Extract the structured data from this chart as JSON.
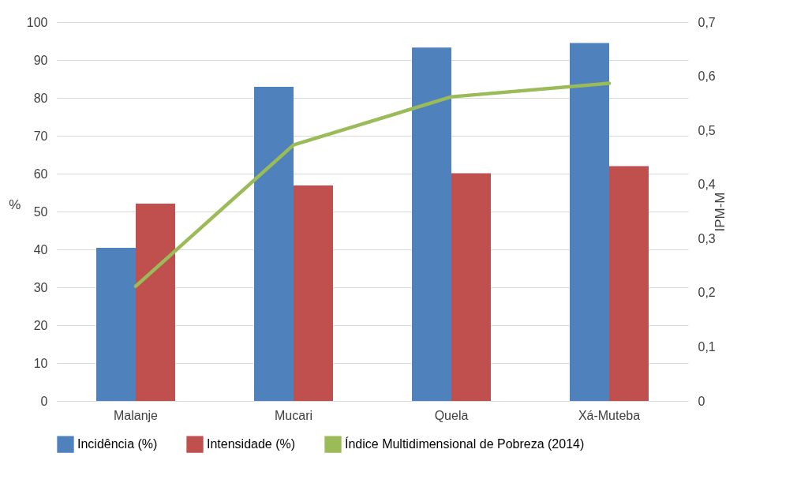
{
  "chart_data": {
    "type": "bar",
    "categories": [
      "Malanje",
      "Mucari",
      "Quela",
      "Xá-Muteba"
    ],
    "series": [
      {
        "name": "Incidência (%)",
        "color": "#4f81bd",
        "values": [
          40.4,
          82.9,
          93.3,
          94.5
        ]
      },
      {
        "name": "Intensidade (%)",
        "color": "#c0504d",
        "values": [
          52.1,
          56.9,
          60.1,
          62.0
        ]
      },
      {
        "name": "Índice Multidimensional de Pobreza (2014)",
        "type": "line",
        "axis": "y2",
        "color": "#9bbb59",
        "values": [
          0.212,
          0.473,
          0.562,
          0.587
        ]
      }
    ],
    "ylabel": "%",
    "y2label": "IPM-M",
    "ylim": [
      0,
      100
    ],
    "yticks": [
      0,
      10,
      20,
      30,
      40,
      50,
      60,
      70,
      80,
      90,
      100
    ],
    "y2lim": [
      0,
      0.7
    ],
    "y2ticks": [
      0,
      {
        "value": 0.1,
        "label": "0,1"
      },
      {
        "value": 0.2,
        "label": "0,2"
      },
      {
        "value": 0.3,
        "label": "0,3"
      },
      {
        "value": 0.4,
        "label": "0,4"
      },
      {
        "value": 0.5,
        "label": "0,5"
      },
      {
        "value": 0.6,
        "label": "0,6"
      },
      {
        "value": 0.7,
        "label": "0,7"
      }
    ],
    "grid": "y",
    "legend": "bottom",
    "marker": "none",
    "line_style": "solid"
  }
}
